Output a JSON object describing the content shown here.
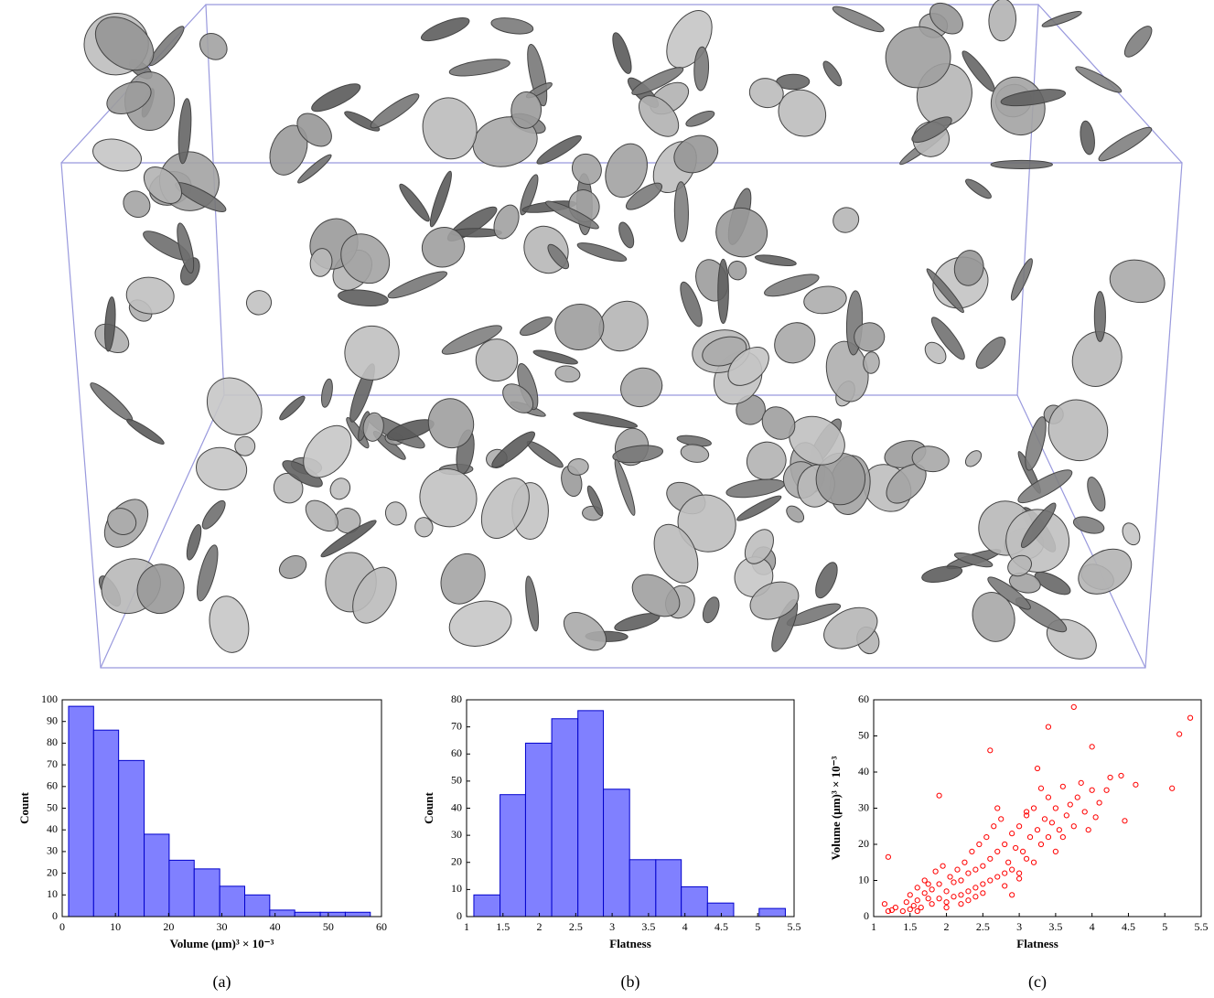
{
  "chart_data": [
    {
      "type": "histogram",
      "caption": "(a)",
      "x_label": "Volume (μm)³ × 10⁻³",
      "y_label": "Count",
      "bins": [
        1.2,
        5.9,
        10.6,
        15.4,
        20.1,
        24.8,
        29.6,
        34.3,
        39.0,
        43.7,
        48.5,
        53.2,
        57.9
      ],
      "values": [
        97,
        86,
        72,
        38,
        26,
        22,
        14,
        10,
        3,
        2,
        2,
        2
      ],
      "color": "#8080ff",
      "edge_color": "#0000cc",
      "xlim": [
        0,
        60
      ],
      "xticks": [
        0,
        10,
        20,
        30,
        40,
        50,
        60
      ],
      "ylim": [
        0,
        100
      ],
      "yticks": [
        0,
        10,
        20,
        30,
        40,
        50,
        60,
        70,
        80,
        90,
        100
      ]
    },
    {
      "type": "histogram",
      "caption": "(b)",
      "x_label": "Flatness",
      "y_label": "Count",
      "bins": [
        1.1,
        1.46,
        1.81,
        2.17,
        2.53,
        2.88,
        3.24,
        3.6,
        3.95,
        4.31,
        4.67,
        5.02,
        5.38
      ],
      "values": [
        8,
        45,
        64,
        73,
        76,
        47,
        21,
        21,
        11,
        5,
        0,
        3
      ],
      "color": "#8080ff",
      "edge_color": "#0000cc",
      "xlim": [
        1,
        5.5
      ],
      "xticks": [
        1,
        1.5,
        2,
        2.5,
        3,
        3.5,
        4,
        4.5,
        5,
        5.5
      ],
      "ylim": [
        0,
        80
      ],
      "yticks": [
        0,
        10,
        20,
        30,
        40,
        50,
        60,
        70,
        80
      ]
    },
    {
      "type": "scatter",
      "caption": "(c)",
      "x_label": "Flatness",
      "y_label": "Volume (μm)³ × 10⁻³",
      "color": "#ff0000",
      "x": [
        1.2,
        1.15,
        1.25,
        1.3,
        1.4,
        1.45,
        1.5,
        1.5,
        1.55,
        1.6,
        1.6,
        1.65,
        1.7,
        1.7,
        1.75,
        1.8,
        1.8,
        1.85,
        1.9,
        1.9,
        1.95,
        2.0,
        2.0,
        2.05,
        2.1,
        2.1,
        2.15,
        2.2,
        2.2,
        2.25,
        2.3,
        2.3,
        2.35,
        2.4,
        2.4,
        2.45,
        2.5,
        2.5,
        2.55,
        2.6,
        2.6,
        2.65,
        2.7,
        2.7,
        2.75,
        2.8,
        2.8,
        2.85,
        2.9,
        2.9,
        2.95,
        3.0,
        3.0,
        3.05,
        3.1,
        3.1,
        3.15,
        3.2,
        3.2,
        3.25,
        3.3,
        3.3,
        3.35,
        3.4,
        3.4,
        3.45,
        3.5,
        3.5,
        3.55,
        3.6,
        3.6,
        3.65,
        3.7,
        3.75,
        3.8,
        3.85,
        3.9,
        3.95,
        4.0,
        4.05,
        4.1,
        4.2,
        4.25,
        4.4,
        4.45,
        4.6,
        5.1,
        5.2,
        5.35,
        3.75,
        3.4,
        4.0,
        2.6,
        1.9,
        1.2,
        3.25,
        2.7,
        3.1,
        1.75,
        2.0,
        2.3,
        2.5,
        2.8,
        3.0,
        1.6,
        2.2,
        2.4,
        2.9
      ],
      "values": [
        1.5,
        3.5,
        1.8,
        2.5,
        1.5,
        4.0,
        2.0,
        6.0,
        3.0,
        4.5,
        8.0,
        2.5,
        6.5,
        10.0,
        5.0,
        3.5,
        7.5,
        12.5,
        5.0,
        9.0,
        14.0,
        4.0,
        7.0,
        11.0,
        5.5,
        9.5,
        13.0,
        6.0,
        10.0,
        15.0,
        7.0,
        12.0,
        18.0,
        8.0,
        13.0,
        20.0,
        9.0,
        14.0,
        22.0,
        10.0,
        16.0,
        25.0,
        11.0,
        18.0,
        27.0,
        12.0,
        20.0,
        15.0,
        13.0,
        23.0,
        19.0,
        12.0,
        25.0,
        18.0,
        16.0,
        28.0,
        22.0,
        15.0,
        30.0,
        24.0,
        20.0,
        35.5,
        27.0,
        22.0,
        33.0,
        26.0,
        18.0,
        30.0,
        24.0,
        22.0,
        36.0,
        28.0,
        31.0,
        25.0,
        33.0,
        37.0,
        29.0,
        24.0,
        35.0,
        27.5,
        31.5,
        35.0,
        38.5,
        39.0,
        26.5,
        36.5,
        35.5,
        50.5,
        55.0,
        58.0,
        52.5,
        47.0,
        46.0,
        33.5,
        16.5,
        41.0,
        30.0,
        29.0,
        9.0,
        2.5,
        4.5,
        6.5,
        8.5,
        10.5,
        1.5,
        3.5,
        5.5,
        6.0
      ],
      "xlim": [
        1,
        5.5
      ],
      "xticks": [
        1,
        1.5,
        2,
        2.5,
        3,
        3.5,
        4,
        4.5,
        5,
        5.5
      ],
      "ylim": [
        0,
        60
      ],
      "yticks": [
        0,
        10,
        20,
        30,
        40,
        50,
        60
      ]
    }
  ]
}
